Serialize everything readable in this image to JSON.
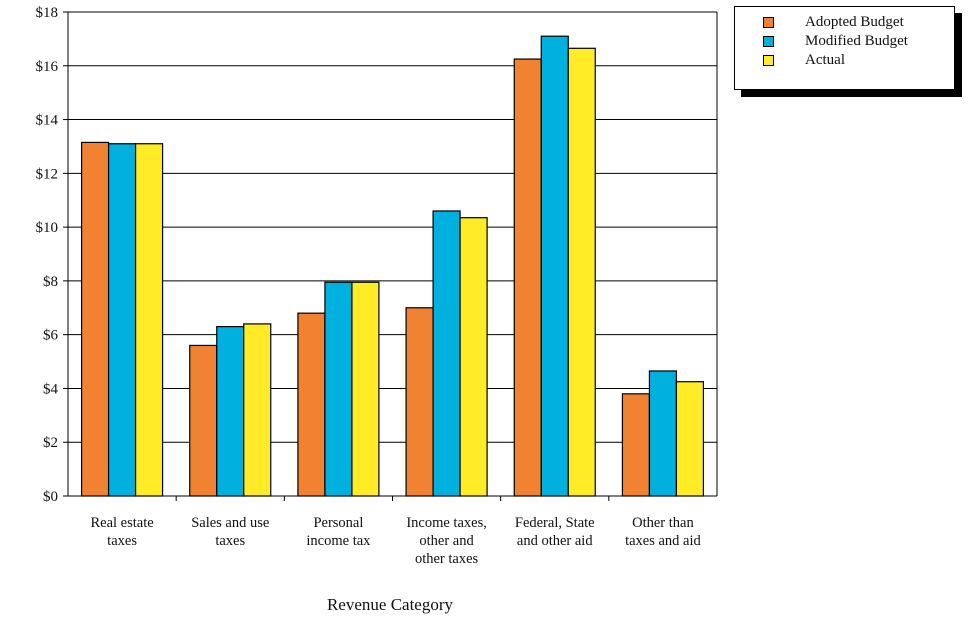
{
  "chart_data": {
    "type": "bar",
    "categories": [
      [
        "Real estate",
        "taxes"
      ],
      [
        "Sales and use",
        "taxes"
      ],
      [
        "Personal",
        "income tax"
      ],
      [
        "Income taxes,",
        "other and",
        "other taxes"
      ],
      [
        "Federal, State",
        "and other aid"
      ],
      [
        "Other than",
        "taxes and aid"
      ]
    ],
    "series": [
      {
        "name": "Adopted Budget",
        "color": "#F08232",
        "values": [
          13.15,
          5.6,
          6.8,
          7.0,
          16.25,
          3.8
        ]
      },
      {
        "name": "Modified Budget",
        "color": "#00B0DE",
        "values": [
          13.1,
          6.3,
          7.95,
          10.6,
          17.1,
          4.65
        ]
      },
      {
        "name": "Actual",
        "color": "#FFEB26",
        "values": [
          13.1,
          6.4,
          7.95,
          10.35,
          16.65,
          4.25
        ]
      }
    ],
    "yticks": [
      "$0",
      "$2",
      "$4",
      "$6",
      "$8",
      "$10",
      "$12",
      "$14",
      "$16",
      "$18"
    ],
    "ylim": [
      0,
      18
    ],
    "xlabel": "Revenue Category",
    "ylabel": "",
    "grid": true,
    "legend_position": "top-right"
  }
}
